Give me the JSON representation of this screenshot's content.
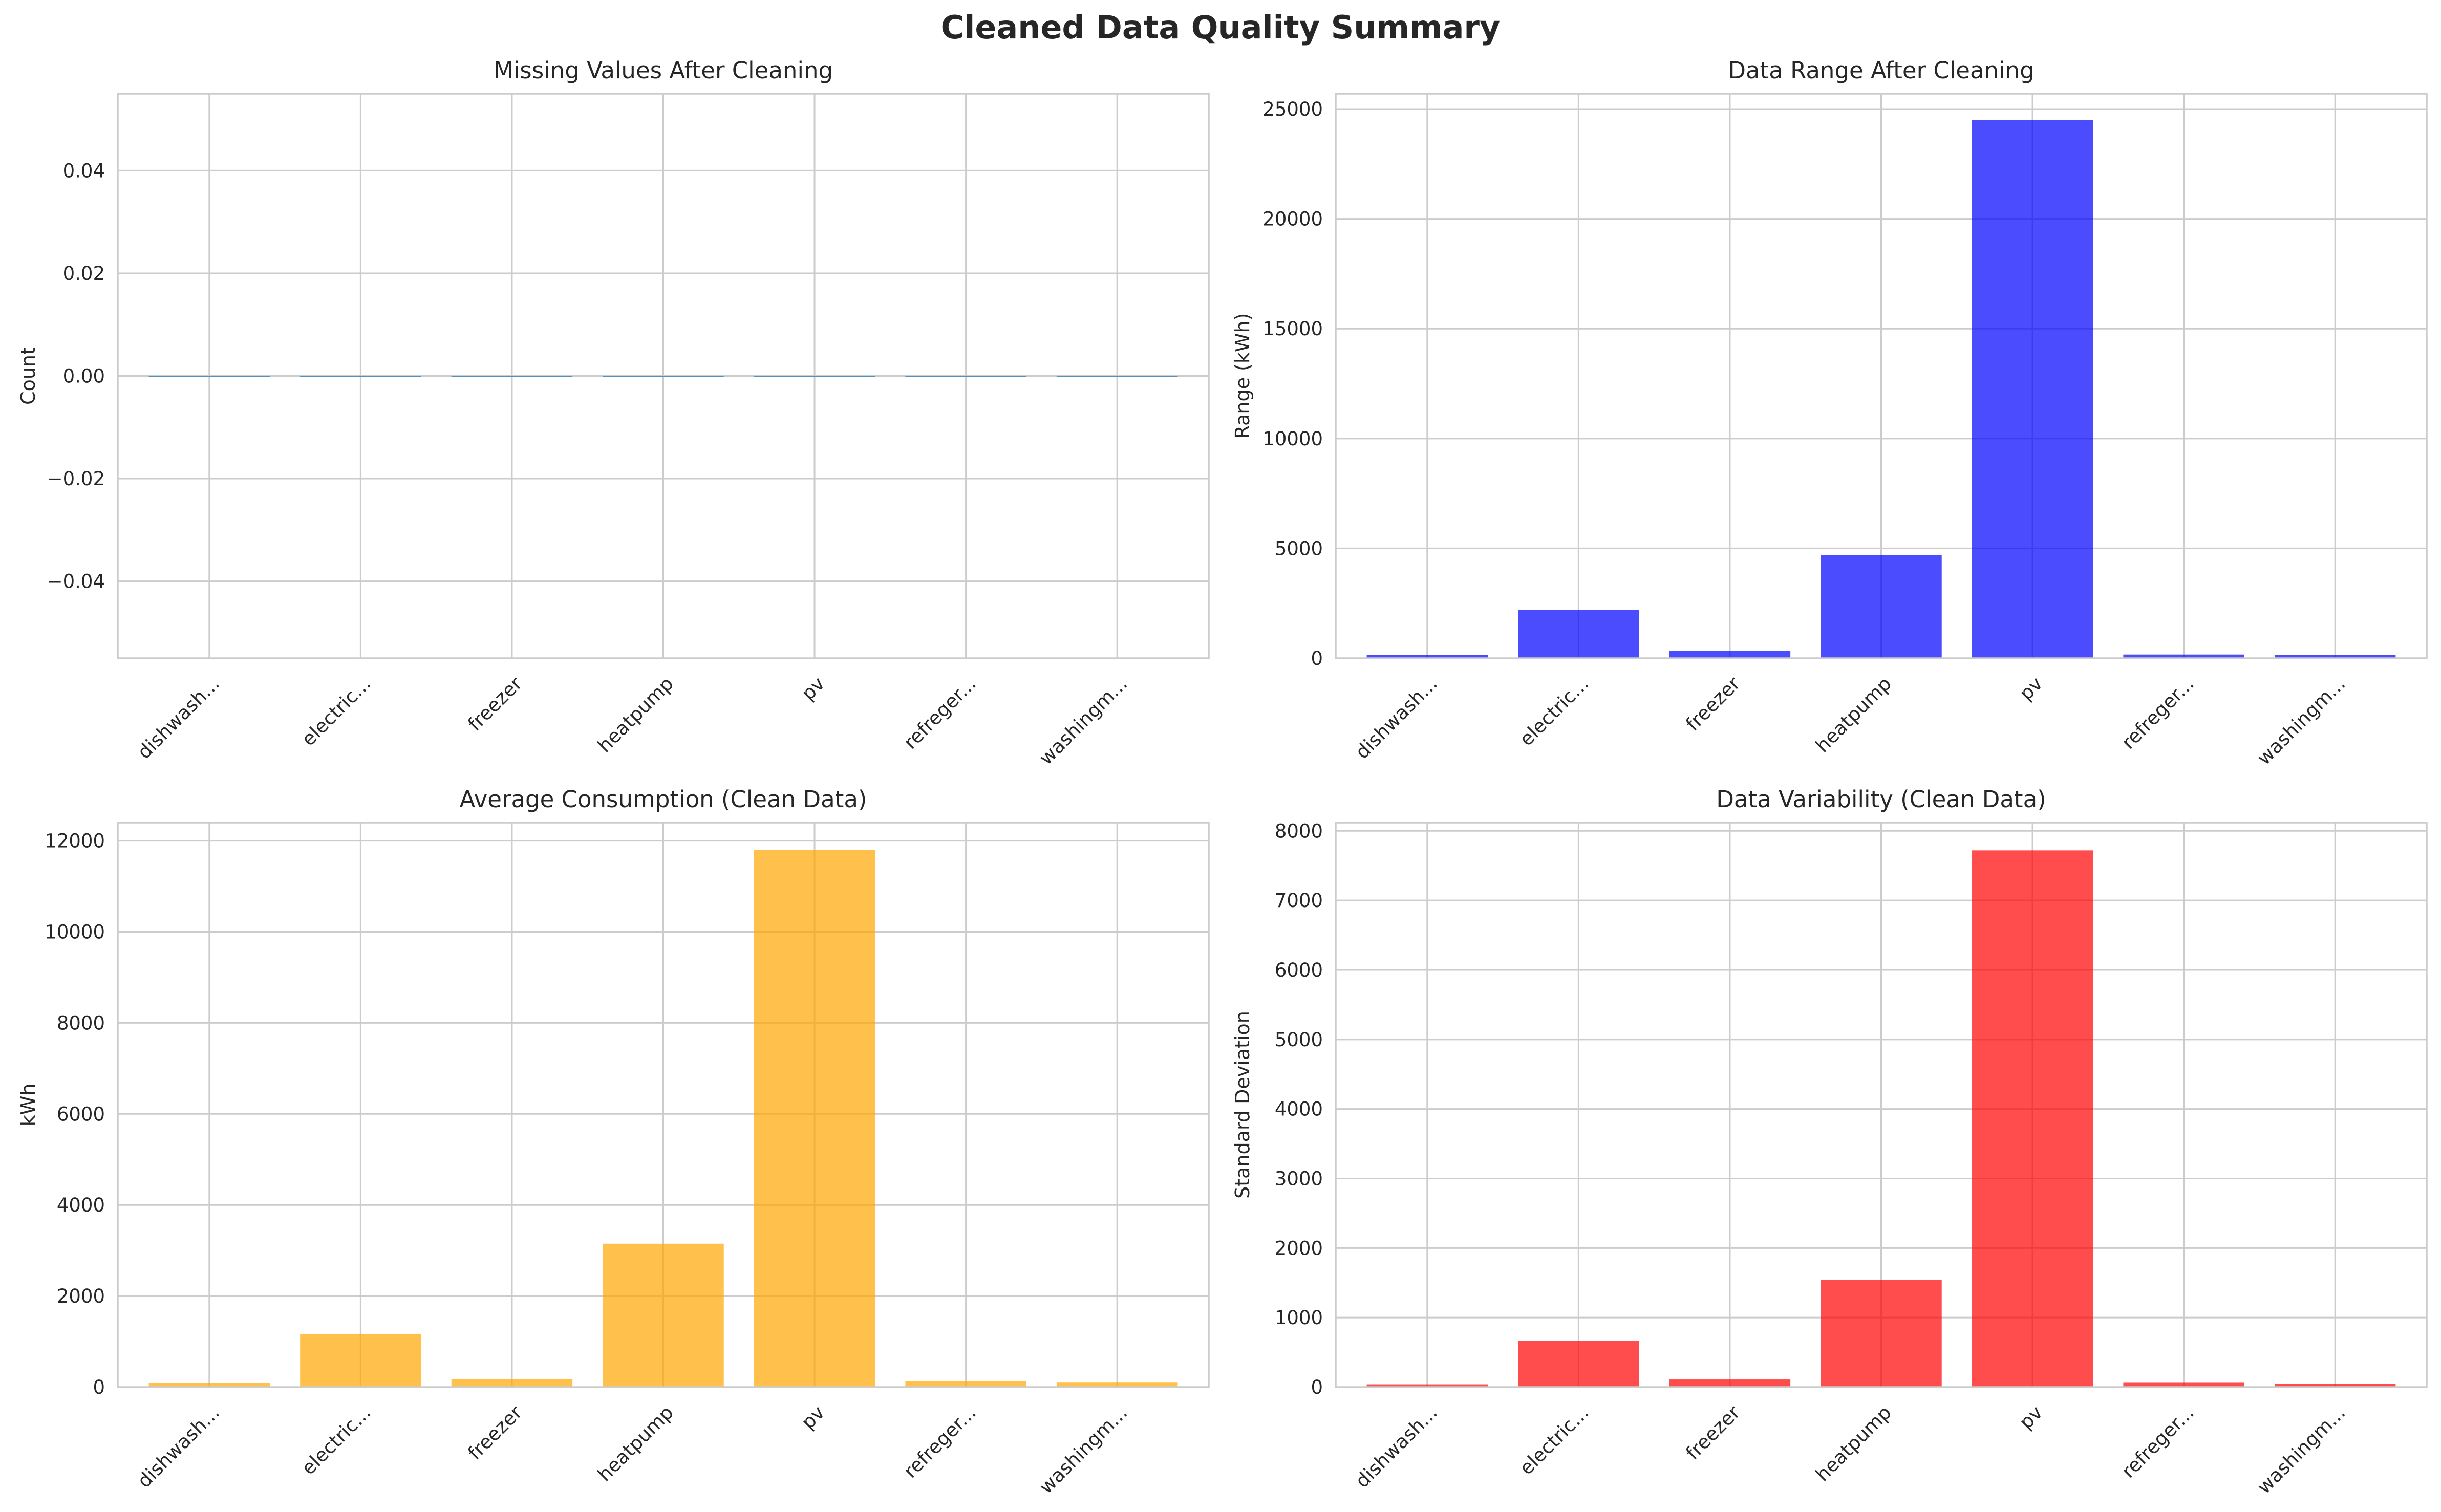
{
  "figure_title": "Cleaned Data Quality Summary",
  "colors": {
    "blue": "#0000ff",
    "orange": "#ffa500",
    "red": "#ff0000",
    "bar_alpha": 0.7
  },
  "chart_data": [
    {
      "type": "bar",
      "title": "Missing Values After Cleaning",
      "xlabel": "",
      "ylabel": "Count",
      "categories": [
        "dishwash...",
        "electric...",
        "freezer",
        "heatpump",
        "pv",
        "refreger...",
        "washingm..."
      ],
      "values": [
        0,
        0,
        0,
        0,
        0,
        0,
        0
      ],
      "ylim": [
        -0.055,
        0.055
      ],
      "yticks": [
        -0.04,
        -0.02,
        0.0,
        0.02,
        0.04
      ],
      "ytick_labels": [
        "−0.04",
        "−0.02",
        "0.00",
        "0.02",
        "0.04"
      ],
      "color": "#1f77b4",
      "grid": true
    },
    {
      "type": "bar",
      "title": "Data Range After Cleaning",
      "xlabel": "",
      "ylabel": "Range (kWh)",
      "categories": [
        "dishwash...",
        "electric...",
        "freezer",
        "heatpump",
        "pv",
        "refreger...",
        "washingm..."
      ],
      "values": [
        150,
        2200,
        330,
        4700,
        24500,
        170,
        160
      ],
      "ylim": [
        0,
        25700
      ],
      "yticks": [
        0,
        5000,
        10000,
        15000,
        20000,
        25000
      ],
      "ytick_labels": [
        "0",
        "5000",
        "10000",
        "15000",
        "20000",
        "25000"
      ],
      "color": "#0000ff",
      "grid": true
    },
    {
      "type": "bar",
      "title": "Average Consumption (Clean Data)",
      "xlabel": "",
      "ylabel": "kWh",
      "categories": [
        "dishwash...",
        "electric...",
        "freezer",
        "heatpump",
        "pv",
        "refreger...",
        "washingm..."
      ],
      "values": [
        100,
        1170,
        180,
        3150,
        11800,
        130,
        110
      ],
      "ylim": [
        0,
        12400
      ],
      "yticks": [
        0,
        2000,
        4000,
        6000,
        8000,
        10000,
        12000
      ],
      "ytick_labels": [
        "0",
        "2000",
        "4000",
        "6000",
        "8000",
        "10000",
        "12000"
      ],
      "color": "#ffa500",
      "grid": true
    },
    {
      "type": "bar",
      "title": "Data Variability (Clean Data)",
      "xlabel": "",
      "ylabel": "Standard Deviation",
      "categories": [
        "dishwash...",
        "electric...",
        "freezer",
        "heatpump",
        "pv",
        "refreger...",
        "washingm..."
      ],
      "values": [
        40,
        670,
        110,
        1540,
        7720,
        70,
        50
      ],
      "ylim": [
        0,
        8120
      ],
      "yticks": [
        0,
        1000,
        2000,
        3000,
        4000,
        5000,
        6000,
        7000,
        8000
      ],
      "ytick_labels": [
        "0",
        "1000",
        "2000",
        "3000",
        "4000",
        "5000",
        "6000",
        "7000",
        "8000"
      ],
      "color": "#ff0000",
      "grid": true
    }
  ]
}
